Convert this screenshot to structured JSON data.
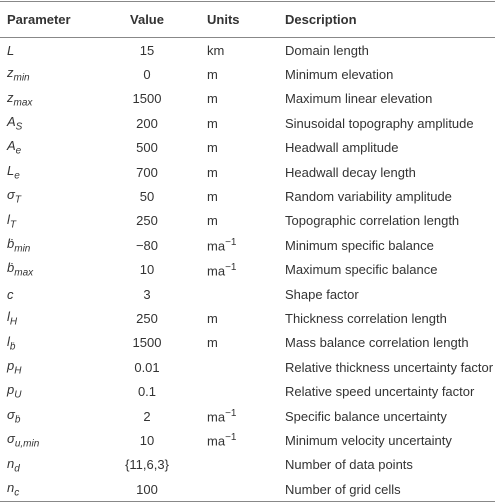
{
  "table": {
    "headers": [
      "Parameter",
      "Value",
      "Units",
      "Description"
    ],
    "rows": [
      [
        {
          "symbol": "L"
        },
        "15",
        "km",
        "Domain length"
      ],
      [
        {
          "symbol": "z",
          "sub": "min"
        },
        "0",
        "m",
        "Minimum elevation"
      ],
      [
        {
          "symbol": "z",
          "sub": "max"
        },
        "1500",
        "m",
        "Maximum linear elevation"
      ],
      [
        {
          "symbol": "A",
          "sub": "S"
        },
        "200",
        "m",
        "Sinusoidal topography amplitude"
      ],
      [
        {
          "symbol": "A",
          "sub": "e"
        },
        "500",
        "m",
        "Headwall amplitude"
      ],
      [
        {
          "symbol": "L",
          "sub": "e"
        },
        "700",
        "m",
        "Headwall decay length"
      ],
      [
        {
          "symbol": "σ",
          "sub": "T"
        },
        "50",
        "m",
        "Random variability amplitude"
      ],
      [
        {
          "symbol": "l",
          "sub": "T"
        },
        "250",
        "m",
        "Topographic correlation length"
      ],
      [
        {
          "symbol": "ḃ",
          "sub": "min"
        },
        "−80",
        {
          "base": "ma",
          "sup": "−1"
        },
        "Minimum specific balance"
      ],
      [
        {
          "symbol": "ḃ",
          "sub": "max"
        },
        "10",
        {
          "base": "ma",
          "sup": "−1"
        },
        "Maximum specific balance"
      ],
      [
        {
          "symbol": "c"
        },
        "3",
        null,
        "Shape factor"
      ],
      [
        {
          "symbol": "l",
          "sub": "H"
        },
        "250",
        "m",
        "Thickness correlation length"
      ],
      [
        {
          "symbol": "l",
          "sub": "ḃ"
        },
        "1500",
        "m",
        "Mass balance correlation length"
      ],
      [
        {
          "symbol": "p",
          "sub": "H"
        },
        "0.01",
        null,
        "Relative thickness uncertainty factor"
      ],
      [
        {
          "symbol": "p",
          "sub": "U"
        },
        "0.1",
        null,
        "Relative speed uncertainty factor"
      ],
      [
        {
          "symbol": "σ",
          "sub": "ḃ"
        },
        "2",
        {
          "base": "ma",
          "sup": "−1"
        },
        "Specific balance uncertainty"
      ],
      [
        {
          "symbol": "σ",
          "sub": "u,min"
        },
        "10",
        {
          "base": "ma",
          "sup": "−1"
        },
        "Minimum velocity uncertainty"
      ],
      [
        {
          "symbol": "n",
          "sub": "d"
        },
        "{11,6,3}",
        null,
        "Number of data points"
      ],
      [
        {
          "symbol": "n",
          "sub": "c"
        },
        "100",
        null,
        "Number of grid cells"
      ]
    ]
  }
}
